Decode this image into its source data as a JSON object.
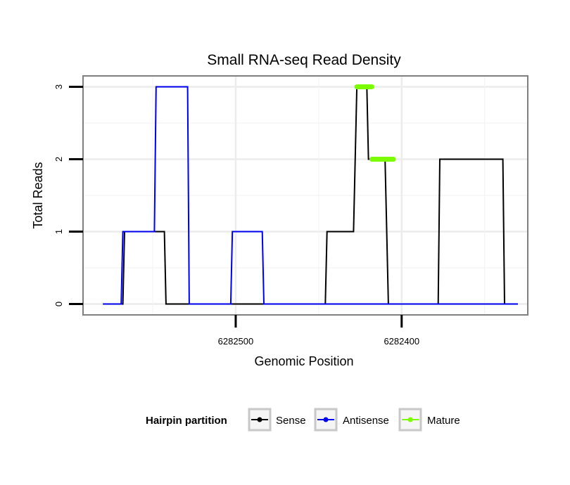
{
  "chart_data": {
    "type": "line",
    "title": "Small RNA-seq Read Density",
    "xlabel": "Genomic Position",
    "ylabel": "Total Reads",
    "x_reversed": true,
    "xlim": [
      6282592,
      6282324
    ],
    "ylim": [
      -0.15,
      3.15
    ],
    "xticks": [
      6282500,
      6282400
    ],
    "xtick_labels": [
      "6282500",
      "6282400"
    ],
    "yticks": [
      0,
      1,
      2,
      3
    ],
    "ytick_labels": [
      "0",
      "1",
      "2",
      "3"
    ],
    "grid": true,
    "legend": {
      "title": "Hairpin partition",
      "position": "bottom",
      "entries": [
        "Sense",
        "Antisense",
        "Mature"
      ]
    },
    "series": [
      {
        "name": "Sense",
        "color": "#000000",
        "x": [
          6282580,
          6282568,
          6282567,
          6282543,
          6282542,
          6282535,
          6282498,
          6282480,
          6282446,
          6282445,
          6282429,
          6282427,
          6282421,
          6282420,
          6282410,
          6282408,
          6282378,
          6282377,
          6282339,
          6282338,
          6282330
        ],
        "y": [
          0,
          0,
          1,
          1,
          0,
          0,
          0,
          0,
          0,
          1,
          1,
          3,
          3,
          2,
          2,
          0,
          0,
          2,
          2,
          0,
          0
        ]
      },
      {
        "name": "Antisense",
        "color": "#0000ee",
        "x": [
          6282580,
          6282569,
          6282568,
          6282549,
          6282548,
          6282529,
          6282528,
          6282503,
          6282502,
          6282484,
          6282483,
          6282446,
          6282338,
          6282330
        ],
        "y": [
          0,
          0,
          1,
          1,
          3,
          3,
          0,
          0,
          1,
          1,
          0,
          0,
          0,
          0
        ]
      },
      {
        "name": "Mature",
        "color": "#7cfc00",
        "segments": [
          {
            "x_start": 6282427,
            "x_end": 6282418,
            "y": 3
          },
          {
            "x_start": 6282418,
            "x_end": 6282405,
            "y": 2
          }
        ]
      }
    ]
  }
}
